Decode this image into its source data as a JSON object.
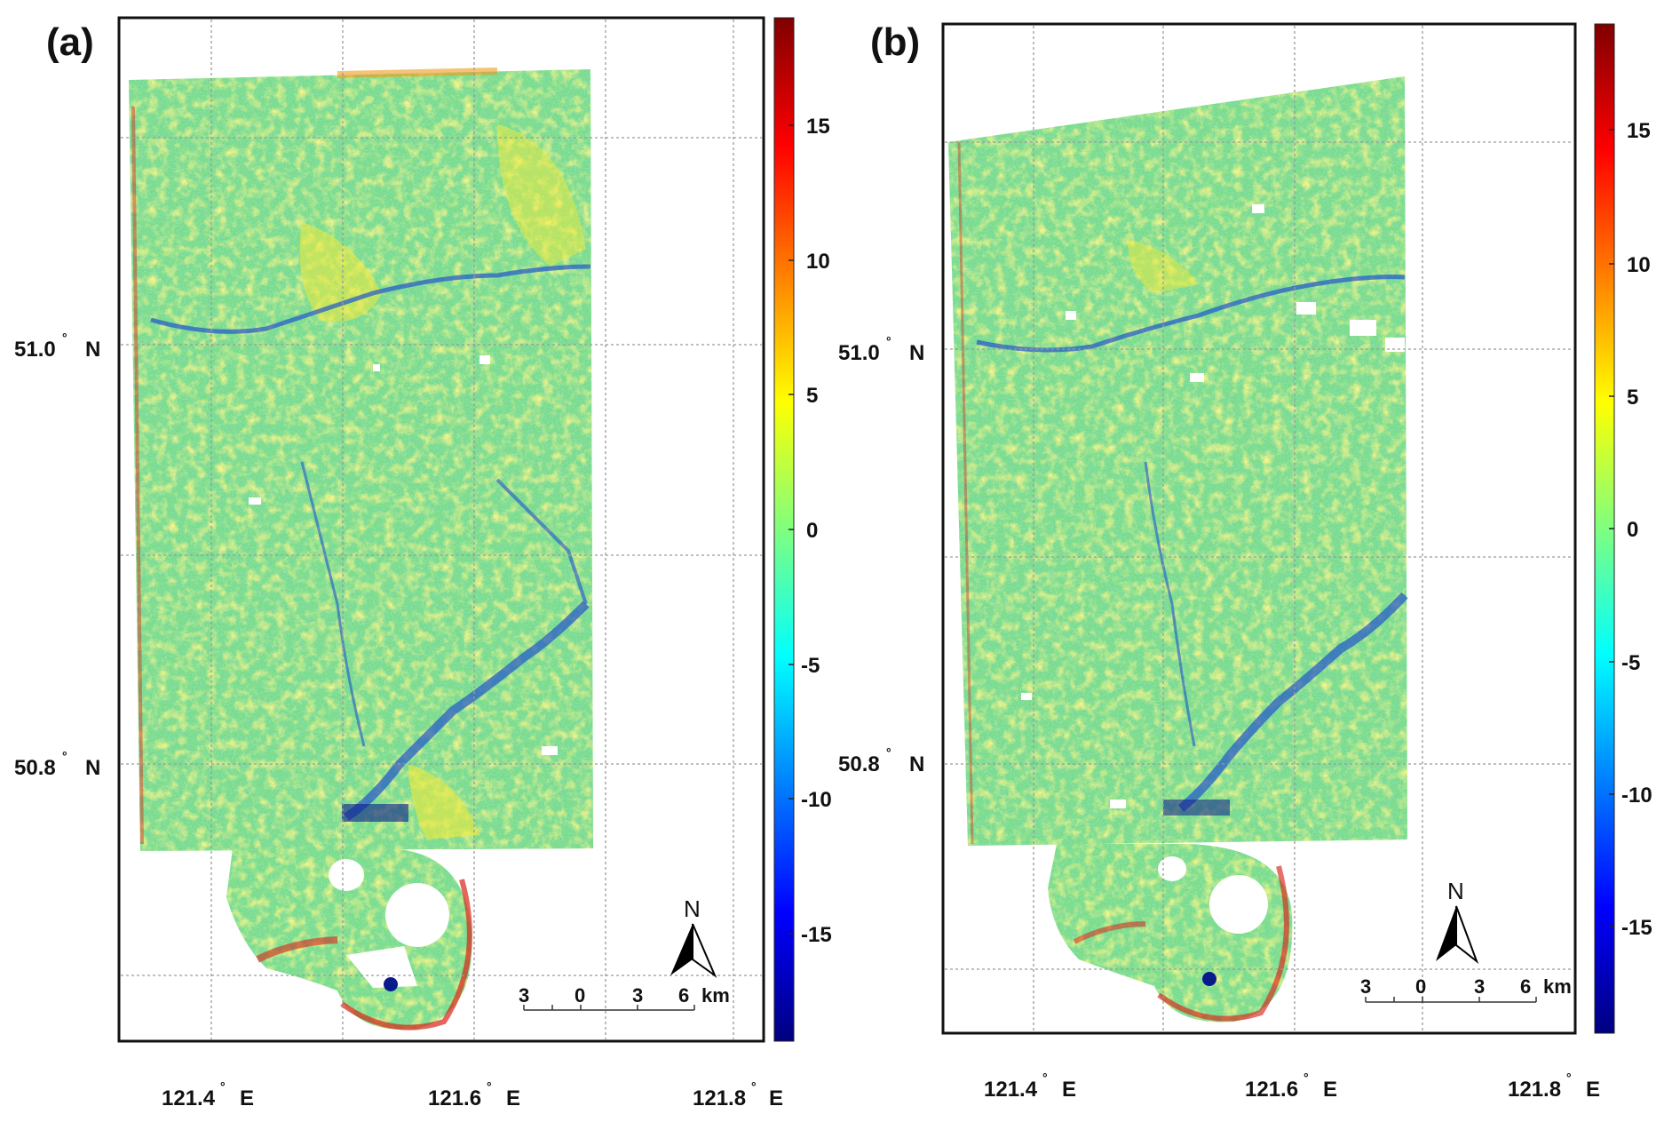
{
  "panels": [
    {
      "id": "a",
      "label": "(a)",
      "lat_labels": [
        {
          "value": "51.0",
          "deg": "°",
          "hemi": "N"
        },
        {
          "value": "50.8",
          "deg": "°",
          "hemi": "N"
        }
      ],
      "lon_labels": [
        {
          "value": "121.4",
          "deg": "°",
          "hemi": "E"
        },
        {
          "value": "121.6",
          "deg": "°",
          "hemi": "E"
        },
        {
          "value": "121.8",
          "deg": "°",
          "hemi": "E"
        }
      ],
      "colorbar_ticks": [
        "15",
        "10",
        "5",
        "0",
        "-5",
        "-10",
        "-15"
      ],
      "scale_bar": {
        "labels": [
          "3",
          "0",
          "3",
          "6"
        ],
        "unit": "km"
      },
      "north_label": "N"
    },
    {
      "id": "b",
      "label": "(b)",
      "lat_labels": [
        {
          "value": "51.0",
          "deg": "°",
          "hemi": "N"
        },
        {
          "value": "50.8",
          "deg": "°",
          "hemi": "N"
        }
      ],
      "lon_labels": [
        {
          "value": "121.4",
          "deg": "°",
          "hemi": "E"
        },
        {
          "value": "121.6",
          "deg": "°",
          "hemi": "E"
        },
        {
          "value": "121.8",
          "deg": "°",
          "hemi": "E"
        }
      ],
      "colorbar_ticks": [
        "15",
        "10",
        "5",
        "0",
        "-5",
        "-10",
        "-15"
      ],
      "scale_bar": {
        "labels": [
          "3",
          "0",
          "3",
          "6"
        ],
        "unit": "km"
      },
      "north_label": "N"
    }
  ],
  "colormap": {
    "name": "jet",
    "stops": [
      "#00007f",
      "#0000ff",
      "#007fff",
      "#00ffff",
      "#7fff7f",
      "#ffff00",
      "#ff7f00",
      "#ff0000",
      "#7f0000"
    ],
    "range": [
      -19,
      19
    ]
  },
  "map_colors": {
    "base": "#7cdc8a",
    "greenish_yellow": "#b8e65a",
    "yellow": "#f0ea3a",
    "cyan": "#55d8d8",
    "blue": "#2255cc",
    "dark_blue": "#0a1a8a",
    "red": "#d8241a",
    "orange": "#f09a20",
    "gap": "#ffffff"
  }
}
